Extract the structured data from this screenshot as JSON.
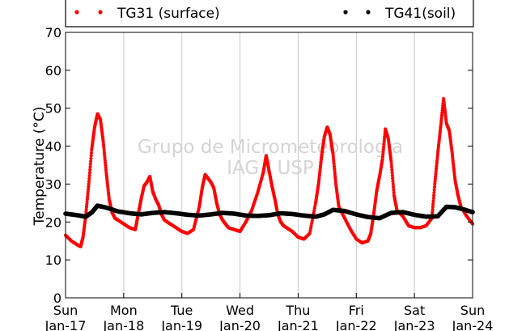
{
  "chart_data": {
    "type": "scatter",
    "title": "",
    "xlabel": "",
    "ylabel": "Temperature (°C)",
    "ylim": [
      0,
      70
    ],
    "yticks": [
      0,
      10,
      20,
      30,
      40,
      50,
      60,
      70
    ],
    "xlim": [
      0,
      7
    ],
    "x_unit": "days since Sun Jan-17 00:00",
    "xticks": [
      {
        "day": "Sun",
        "date": "Jan-17"
      },
      {
        "day": "Mon",
        "date": "Jan-18"
      },
      {
        "day": "Tue",
        "date": "Jan-19"
      },
      {
        "day": "Wed",
        "date": "Jan-20"
      },
      {
        "day": "Thu",
        "date": "Jan-21"
      },
      {
        "day": "Fri",
        "date": "Jan-22"
      },
      {
        "day": "Sat",
        "date": "Jan-23"
      },
      {
        "day": "Sun",
        "date": "Jan-24"
      }
    ],
    "grid": "vertical",
    "legend_placement": "top",
    "watermark": [
      "Grupo de Micrometeorologia",
      "IAG / USP"
    ],
    "series": [
      {
        "name": "TG31 (surface)",
        "color": "#ff0000",
        "x": [
          0,
          0.1,
          0.2,
          0.26,
          0.3,
          0.35,
          0.4,
          0.45,
          0.5,
          0.55,
          0.6,
          0.65,
          0.7,
          0.75,
          0.8,
          0.85,
          0.9,
          1.0,
          1.1,
          1.2,
          1.25,
          1.3,
          1.35,
          1.4,
          1.45,
          1.5,
          1.55,
          1.6,
          1.65,
          1.7,
          1.8,
          1.9,
          2.0,
          2.1,
          2.2,
          2.3,
          2.35,
          2.4,
          2.45,
          2.5,
          2.55,
          2.6,
          2.65,
          2.7,
          2.75,
          2.8,
          2.9,
          3.0,
          3.1,
          3.2,
          3.3,
          3.4,
          3.45,
          3.5,
          3.55,
          3.6,
          3.65,
          3.7,
          3.75,
          3.8,
          3.9,
          4.0,
          4.1,
          4.2,
          4.3,
          4.35,
          4.4,
          4.45,
          4.5,
          4.55,
          4.6,
          4.65,
          4.7,
          4.8,
          4.9,
          5.0,
          5.1,
          5.2,
          5.25,
          5.3,
          5.35,
          5.4,
          5.45,
          5.5,
          5.55,
          5.6,
          5.65,
          5.7,
          5.8,
          5.9,
          6.0,
          6.1,
          6.2,
          6.3,
          6.35,
          6.4,
          6.45,
          6.5,
          6.55,
          6.6,
          6.65,
          6.7,
          6.75,
          6.8,
          6.9,
          7.0
        ],
        "y": [
          16.5,
          15.0,
          14.0,
          13.5,
          16.0,
          22.0,
          30.0,
          39.0,
          45.0,
          48.5,
          47.0,
          41.0,
          33.0,
          26.0,
          22.5,
          21.0,
          20.5,
          19.5,
          18.5,
          18.0,
          22.0,
          26.0,
          29.5,
          30.5,
          32.0,
          28.0,
          26.0,
          24.5,
          22.0,
          20.5,
          19.5,
          18.5,
          17.5,
          17.0,
          18.0,
          24.0,
          29.0,
          32.5,
          31.5,
          30.5,
          29.0,
          25.0,
          22.0,
          20.5,
          19.5,
          18.5,
          18.0,
          17.5,
          20.0,
          23.0,
          27.5,
          33.0,
          37.5,
          33.5,
          29.5,
          26.0,
          22.0,
          20.0,
          19.0,
          18.5,
          17.5,
          16.0,
          15.5,
          17.0,
          25.0,
          30.0,
          37.0,
          42.5,
          45.0,
          43.0,
          38.0,
          30.0,
          24.0,
          21.0,
          18.0,
          15.5,
          14.5,
          15.0,
          17.0,
          22.0,
          28.0,
          32.0,
          36.5,
          44.5,
          42.0,
          36.0,
          27.0,
          23.0,
          21.5,
          19.0,
          18.5,
          18.5,
          19.0,
          21.0,
          30.0,
          38.0,
          45.0,
          52.5,
          46.0,
          44.0,
          38.0,
          31.0,
          27.0,
          24.0,
          21.5,
          19.5
        ]
      },
      {
        "name": "TG41(soil)",
        "color": "#000000",
        "x": [
          0,
          0.2,
          0.35,
          0.45,
          0.55,
          0.7,
          0.9,
          1.1,
          1.3,
          1.5,
          1.7,
          1.9,
          2.1,
          2.3,
          2.5,
          2.7,
          2.9,
          3.1,
          3.3,
          3.5,
          3.7,
          3.9,
          4.1,
          4.3,
          4.45,
          4.6,
          4.8,
          5.0,
          5.2,
          5.4,
          5.6,
          5.8,
          6.0,
          6.2,
          6.4,
          6.55,
          6.7,
          6.85,
          7.0
        ],
        "y": [
          22.2,
          21.8,
          21.4,
          22.5,
          24.3,
          23.8,
          22.8,
          22.3,
          22.0,
          22.4,
          22.6,
          22.3,
          21.9,
          21.7,
          22.0,
          22.4,
          22.2,
          21.7,
          21.6,
          21.8,
          22.3,
          22.1,
          21.7,
          21.4,
          22.0,
          23.2,
          22.9,
          22.0,
          21.3,
          21.0,
          22.4,
          22.6,
          21.9,
          21.4,
          21.5,
          24.0,
          23.9,
          23.3,
          22.6
        ]
      }
    ]
  }
}
